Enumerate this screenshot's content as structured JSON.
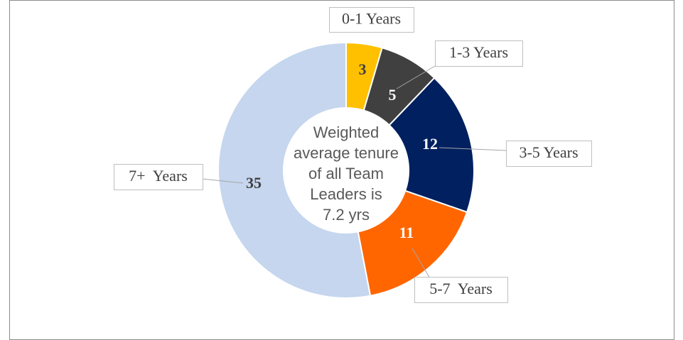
{
  "chart_data": {
    "type": "doughnut",
    "categories": [
      "0-1 Years",
      "1-3 Years",
      "3-5 Years",
      "5-7  Years",
      "7+  Years"
    ],
    "values": [
      3,
      5,
      12,
      11,
      35
    ],
    "colors": [
      "#FFC000",
      "#404040",
      "#002060",
      "#FF6600",
      "#C5D6EE"
    ],
    "center_text": [
      "Weighted",
      "average tenure",
      "of all Team",
      "Leaders is",
      "7.2 yrs"
    ]
  }
}
